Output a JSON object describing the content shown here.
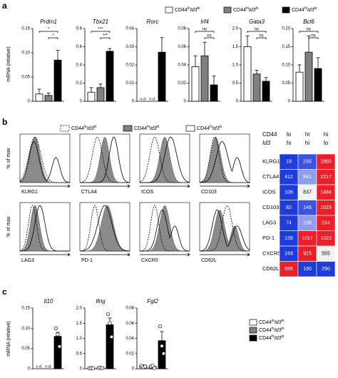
{
  "panels": [
    "a",
    "b",
    "c"
  ],
  "legend": [
    [
      "CD44",
      "lo",
      "Id3",
      "hi"
    ],
    [
      "CD44",
      "hi",
      "Id3",
      "hi"
    ],
    [
      "CD44",
      "hi",
      "Id3",
      "lo"
    ]
  ],
  "legend_colors": [
    "#ffffff",
    "#808080",
    "#000000"
  ],
  "a_ylabel": "mRNA (relative)",
  "c_ylabel": "mRNA (relative)",
  "flow": {
    "ylabel": "% of max",
    "markers": [
      "KLRG1",
      "CTLA4",
      "ICOS",
      "CD103",
      "LAG3",
      "PD-1",
      "CXCR5",
      "CD62L"
    ]
  },
  "heatmap": {
    "header": [
      "CD44",
      "Id3"
    ],
    "columns": [
      [
        "lo",
        "hi"
      ],
      [
        "hi",
        "hi"
      ],
      [
        "hi",
        "lo"
      ]
    ],
    "rows": [
      "KLRG1",
      "CTLA4",
      "ICOS",
      "CD103",
      "LAG3",
      "PD-1",
      "CXCR5",
      "CD62L"
    ],
    "values": [
      [
        19,
        235,
        1860
      ],
      [
        412,
        841,
        2217
      ],
      [
        106,
        837,
        1484
      ],
      [
        82,
        146,
        1023
      ],
      [
        74,
        138,
        244
      ],
      [
        138,
        1017,
        1023
      ],
      [
        248,
        915,
        555
      ],
      [
        695,
        190,
        290
      ]
    ],
    "colors": [
      [
        "#1f3bdc",
        "#3b55e0",
        "#e8202a"
      ],
      [
        "#1f3bdc",
        "#8f9ee8",
        "#e8202a"
      ],
      [
        "#1f3bdc",
        "#f2f2f2",
        "#e8202a"
      ],
      [
        "#1f3bdc",
        "#3b55e0",
        "#e8202a"
      ],
      [
        "#1f3bdc",
        "#8f9ee8",
        "#e8202a"
      ],
      [
        "#1f3bdc",
        "#e8202a",
        "#e8202a"
      ],
      [
        "#1f3bdc",
        "#e8202a",
        "#f2f2f2"
      ],
      [
        "#e8202a",
        "#1f3bdc",
        "#1f3bdc"
      ]
    ]
  },
  "chart_data": [
    {
      "type": "bar",
      "title": "Prdm1",
      "values": [
        0.015,
        0.012,
        0.085
      ],
      "errors": [
        0.01,
        0.005,
        0.02
      ],
      "ylim": [
        0,
        0.15
      ],
      "yticks": [
        0,
        0.05,
        {
          "value": 0.1,
          "label": "0.10"
        },
        0.15
      ],
      "annotations": [
        {
          "label": "*",
          "from": 0,
          "to": 2
        },
        {
          "label": "*",
          "from": 1,
          "to": 2
        }
      ]
    },
    {
      "type": "bar",
      "title": "Tbx21",
      "values": [
        0.1,
        0.15,
        0.55
      ],
      "errors": [
        0.05,
        0.04,
        0.03
      ],
      "ylim": [
        0,
        0.8
      ],
      "yticks": [
        0,
        0.2,
        0.4,
        0.6,
        0.8
      ],
      "annotations": [
        {
          "label": "***",
          "from": 0,
          "to": 2
        },
        {
          "label": "***",
          "from": 1,
          "to": 2
        }
      ]
    },
    {
      "type": "bar",
      "title": "Rorc",
      "values": [
        null,
        null,
        0.027
      ],
      "errors": [
        null,
        null,
        0.008
      ],
      "value_labels": [
        "n.d.",
        "n.d.",
        null
      ],
      "ylim": [
        0,
        0.04
      ],
      "yticks": [
        0,
        0.01,
        0.02,
        0.03,
        0.04
      ]
    },
    {
      "type": "bar",
      "title": "Irf4",
      "values": [
        0.038,
        0.05,
        0.018
      ],
      "errors": [
        0.012,
        0.015,
        0.01
      ],
      "ylim": [
        0,
        0.08
      ],
      "yticks": [
        0,
        0.02,
        0.04,
        0.06,
        0.08
      ],
      "annotations": [
        {
          "label": "ns",
          "from": 0,
          "to": 2
        },
        {
          "label": "ns",
          "from": 1,
          "to": 2
        }
      ]
    },
    {
      "type": "bar",
      "title": "Gata3",
      "values": [
        1.5,
        0.75,
        0.55
      ],
      "errors": [
        0.3,
        0.1,
        0.1
      ],
      "ylim": [
        0,
        2.0
      ],
      "yticks": [
        0,
        0.5,
        {
          "value": 1.0,
          "label": "1.0"
        },
        1.5,
        {
          "value": 2.0,
          "label": "2.0"
        }
      ],
      "annotations": [
        {
          "label": "ns",
          "from": 0,
          "to": 2
        },
        {
          "label": "ns",
          "from": 1,
          "to": 2
        }
      ]
    },
    {
      "type": "bar",
      "title": "Bcl6",
      "values": [
        0.08,
        0.135,
        0.09
      ],
      "errors": [
        0.02,
        0.045,
        0.03
      ],
      "ylim": [
        0,
        0.2
      ],
      "yticks": [
        0,
        0.05,
        {
          "value": 0.1,
          "label": "0.10"
        },
        0.15,
        {
          "value": 0.2,
          "label": "0.20"
        }
      ],
      "annotations": [
        {
          "label": "ns",
          "from": 0,
          "to": 2
        },
        {
          "label": "ns",
          "from": 1,
          "to": 2
        }
      ]
    },
    {
      "type": "bar",
      "title": "Il10",
      "values": [
        null,
        null,
        0.08
      ],
      "errors": [
        null,
        null,
        0.01
      ],
      "value_labels": [
        "n.d.",
        "n.d.",
        null
      ],
      "points": [
        [],
        [],
        [
          0.1,
          0.085,
          0.055
        ]
      ],
      "ylim": [
        0,
        0.15
      ],
      "yticks": [
        0,
        0.05,
        {
          "value": 0.1,
          "label": "0.10"
        },
        0.15
      ]
    },
    {
      "type": "bar",
      "title": "Ifng",
      "values": [
        0.02,
        0.03,
        1.45
      ],
      "errors": [
        0.005,
        0.005,
        0.22
      ],
      "points": [
        [
          0.02,
          0.02,
          0.02
        ],
        [
          0.03,
          0.03,
          0.02
        ],
        [
          1.8,
          1.5,
          1.05
        ]
      ],
      "ylim": [
        0,
        2.0
      ],
      "yticks": [
        0,
        0.5,
        {
          "value": 1.0,
          "label": "1.0"
        },
        1.5,
        {
          "value": 2.0,
          "label": "2.0"
        }
      ]
    },
    {
      "type": "bar",
      "title": "Fgl2",
      "values": [
        0.004,
        0.003,
        0.037
      ],
      "errors": [
        0.001,
        0.001,
        0.012
      ],
      "points": [
        [
          0.004,
          0.002,
          0.003
        ],
        [
          0.003,
          0.004,
          0.001
        ],
        [
          0.056,
          0.03,
          0.02
        ]
      ],
      "ylim": [
        0,
        0.08
      ],
      "yticks": [
        0,
        0.02,
        0.04,
        0.06,
        0.08
      ]
    }
  ]
}
